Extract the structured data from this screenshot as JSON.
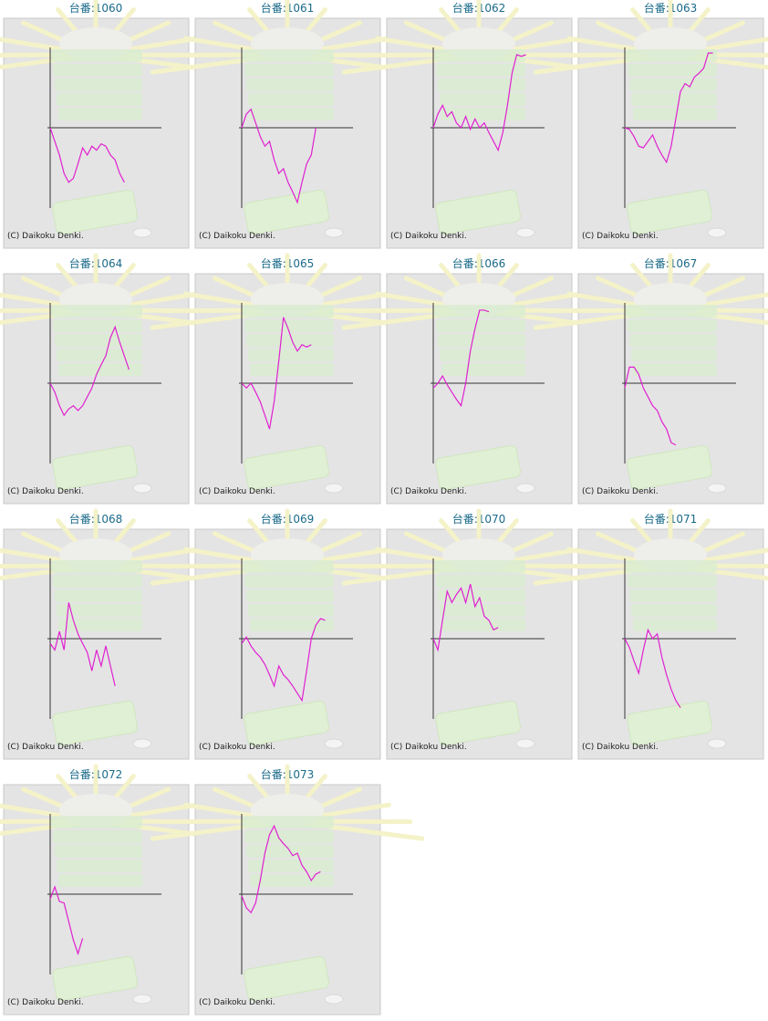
{
  "chart_data": [
    {
      "type": "line",
      "title": "台番:1060",
      "credit": "(C) Daikoku Denki.",
      "color": "#e020d0",
      "xlim": [
        0,
        24
      ],
      "ylim": [
        -100,
        100
      ],
      "values": [
        0,
        -17,
        -34,
        -57,
        -68,
        -63,
        -45,
        -25,
        -34,
        -23,
        -28,
        -20,
        -23,
        -34,
        -40,
        -57,
        -68
      ]
    },
    {
      "type": "line",
      "title": "台番:1061",
      "credit": "(C) Daikoku Denki.",
      "color": "#e020d0",
      "xlim": [
        0,
        24
      ],
      "ylim": [
        -100,
        100
      ],
      "values": [
        0,
        17,
        23,
        6,
        -11,
        -23,
        -17,
        -40,
        -57,
        -51,
        -68,
        -80,
        -93,
        -68,
        -45,
        -34,
        0
      ]
    },
    {
      "type": "line",
      "title": "台番:1062",
      "credit": "(C) Daikoku Denki.",
      "color": "#e020d0",
      "xlim": [
        0,
        24
      ],
      "ylim": [
        -100,
        100
      ],
      "values": [
        0,
        17,
        28,
        14,
        20,
        6,
        0,
        14,
        -2,
        11,
        0,
        6,
        -6,
        -17,
        -28,
        -6,
        28,
        68,
        91,
        89,
        91
      ]
    },
    {
      "type": "line",
      "title": "台番:1063",
      "credit": "(C) Daikoku Denki.",
      "color": "#e020d0",
      "xlim": [
        0,
        24
      ],
      "ylim": [
        -100,
        100
      ],
      "values": [
        0,
        -2,
        -11,
        -23,
        -25,
        -17,
        -9,
        -23,
        -34,
        -43,
        -23,
        11,
        45,
        55,
        51,
        63,
        68,
        74,
        93,
        93
      ]
    },
    {
      "type": "line",
      "title": "台番:1064",
      "credit": "(C) Daikoku Denki.",
      "color": "#e020d0",
      "xlim": [
        0,
        24
      ],
      "ylim": [
        -100,
        100
      ],
      "values": [
        0,
        -11,
        -28,
        -40,
        -32,
        -28,
        -34,
        -28,
        -17,
        -6,
        11,
        23,
        34,
        57,
        70,
        51,
        34,
        17
      ]
    },
    {
      "type": "line",
      "title": "台番:1065",
      "credit": "(C) Daikoku Denki.",
      "color": "#e020d0",
      "xlim": [
        0,
        24
      ],
      "ylim": [
        -100,
        100
      ],
      "values": [
        0,
        -6,
        0,
        -11,
        -23,
        -40,
        -57,
        -23,
        28,
        82,
        68,
        51,
        40,
        48,
        45,
        48
      ]
    },
    {
      "type": "line",
      "title": "台番:1066",
      "credit": "(C) Daikoku Denki.",
      "color": "#e020d0",
      "xlim": [
        0,
        24
      ],
      "ylim": [
        -100,
        100
      ],
      "values": [
        -6,
        0,
        9,
        -2,
        -11,
        -20,
        -28,
        0,
        40,
        68,
        91,
        91,
        89
      ]
    },
    {
      "type": "line",
      "title": "台番:1067",
      "credit": "(C) Daikoku Denki.",
      "color": "#e020d0",
      "xlim": [
        0,
        24
      ],
      "ylim": [
        -100,
        100
      ],
      "values": [
        -6,
        20,
        20,
        11,
        -6,
        -17,
        -28,
        -34,
        -48,
        -57,
        -74,
        -77
      ]
    },
    {
      "type": "line",
      "title": "台番:1068",
      "credit": "(C) Daikoku Denki.",
      "color": "#e020d0",
      "xlim": [
        0,
        24
      ],
      "ylim": [
        -100,
        100
      ],
      "values": [
        -6,
        -14,
        9,
        -14,
        45,
        23,
        6,
        -6,
        -17,
        -40,
        -14,
        -34,
        -9,
        -34,
        -59
      ]
    },
    {
      "type": "line",
      "title": "台番:1069",
      "credit": "(C) Daikoku Denki.",
      "color": "#e020d0",
      "xlim": [
        0,
        24
      ],
      "ylim": [
        -100,
        100
      ],
      "values": [
        -6,
        2,
        -9,
        -17,
        -23,
        -32,
        -45,
        -59,
        -34,
        -45,
        -51,
        -59,
        -68,
        -77,
        -40,
        0,
        17,
        25,
        23
      ]
    },
    {
      "type": "line",
      "title": "台番:1070",
      "credit": "(C) Daikoku Denki.",
      "color": "#e020d0",
      "xlim": [
        0,
        24
      ],
      "ylim": [
        -100,
        100
      ],
      "values": [
        0,
        -14,
        23,
        59,
        45,
        55,
        63,
        45,
        68,
        40,
        51,
        28,
        23,
        11,
        14
      ]
    },
    {
      "type": "line",
      "title": "台番:1071",
      "credit": "(C) Daikoku Denki.",
      "color": "#e020d0",
      "xlim": [
        0,
        24
      ],
      "ylim": [
        -100,
        100
      ],
      "values": [
        0,
        -11,
        -28,
        -43,
        -14,
        11,
        0,
        6,
        -23,
        -45,
        -63,
        -77,
        -86
      ]
    },
    {
      "type": "line",
      "title": "台番:1072",
      "credit": "(C) Daikoku Denki.",
      "color": "#e020d0",
      "xlim": [
        0,
        24
      ],
      "ylim": [
        -100,
        100
      ],
      "values": [
        -6,
        9,
        -9,
        -11,
        -34,
        -57,
        -74,
        -55
      ]
    },
    {
      "type": "line",
      "title": "台番:1073",
      "credit": "(C) Daikoku Denki.",
      "color": "#e020d0",
      "xlim": [
        0,
        24
      ],
      "ylim": [
        -100,
        100
      ],
      "values": [
        -2,
        -17,
        -23,
        -11,
        17,
        51,
        74,
        85,
        70,
        63,
        57,
        48,
        51,
        36,
        28,
        17,
        25,
        28
      ]
    }
  ]
}
